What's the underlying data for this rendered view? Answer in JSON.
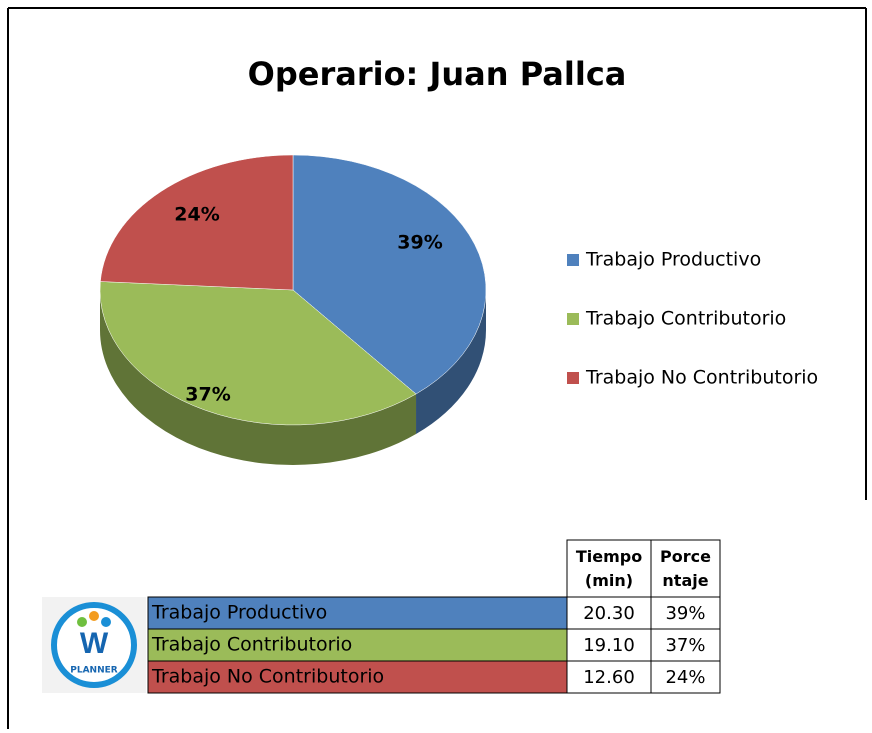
{
  "chart_data": {
    "type": "pie",
    "title": "Operario: Juan Pallca",
    "categories": [
      "Trabajo Productivo",
      "Trabajo Contributorio",
      "Trabajo No Contributorio"
    ],
    "values": [
      39,
      37,
      24
    ],
    "value_labels": [
      "39%",
      "37%",
      "24%"
    ],
    "colors": [
      "#4f81bd",
      "#9bbb59",
      "#c0504d"
    ],
    "legend": "right"
  },
  "table": {
    "header": [
      "Tiempo (min)",
      "Porcentaje"
    ],
    "rows": [
      [
        "20.30",
        "39%"
      ],
      [
        "19.10",
        "37%"
      ],
      [
        "12.60",
        "24%"
      ]
    ]
  },
  "logo": {
    "text": "PLANNER"
  }
}
